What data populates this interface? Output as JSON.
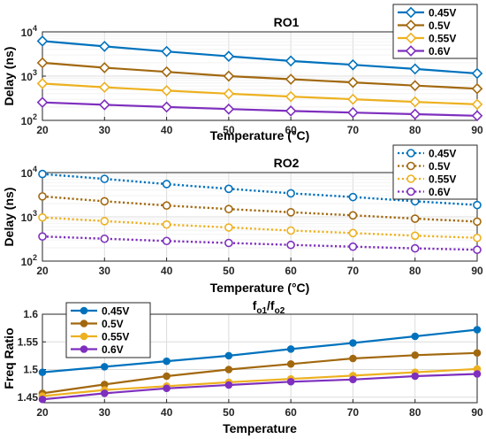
{
  "colors": {
    "s045": "#0072BD",
    "s05": "#A2680F",
    "s055": "#EDB120",
    "s06": "#7E2FBE"
  },
  "chart_data": [
    {
      "id": "ro1",
      "type": "line",
      "title": "RO1",
      "xlabel": "Temperature (°C)",
      "ylabel": "Delay (ns)",
      "yscale": "log",
      "xlim": [
        20,
        90
      ],
      "ylim": [
        100,
        10000
      ],
      "x_ticks": [
        "20",
        "30",
        "40",
        "50",
        "60",
        "70",
        "80",
        "90"
      ],
      "y_ticks": [
        100,
        1000,
        10000
      ],
      "y_tick_base": "10",
      "y_tick_exp": [
        "2",
        "3",
        "4"
      ],
      "grid": true,
      "legend": "top-right",
      "line_style": "solid",
      "marker": "diamond",
      "x": [
        20,
        30,
        40,
        50,
        60,
        70,
        80,
        90
      ],
      "series": [
        {
          "name": "0.45V",
          "color": "#0072BD",
          "values": [
            6200,
            4700,
            3600,
            2800,
            2200,
            1800,
            1450,
            1150
          ]
        },
        {
          "name": "0.5V",
          "color": "#A2680F",
          "values": [
            2000,
            1550,
            1250,
            1000,
            850,
            720,
            610,
            520
          ]
        },
        {
          "name": "0.55V",
          "color": "#EDB120",
          "values": [
            680,
            560,
            470,
            400,
            345,
            300,
            262,
            230
          ]
        },
        {
          "name": "0.6V",
          "color": "#7E2FBE",
          "values": [
            255,
            225,
            200,
            180,
            163,
            150,
            138,
            127
          ]
        }
      ]
    },
    {
      "id": "ro2",
      "type": "line",
      "title": "RO2",
      "xlabel": "Temperature (°C)",
      "ylabel": "Delay (ns)",
      "yscale": "log",
      "xlim": [
        20,
        90
      ],
      "ylim": [
        100,
        10000
      ],
      "x_ticks": [
        "20",
        "30",
        "40",
        "50",
        "60",
        "70",
        "80",
        "90"
      ],
      "y_ticks": [
        100,
        1000,
        10000
      ],
      "y_tick_base": "10",
      "y_tick_exp": [
        "2",
        "3",
        "4"
      ],
      "grid": true,
      "legend": "top-right",
      "line_style": "dotted",
      "marker": "circle",
      "x": [
        20,
        30,
        40,
        50,
        60,
        70,
        80,
        90
      ],
      "series": [
        {
          "name": "0.45V",
          "color": "#0072BD",
          "values": [
            9300,
            7200,
            5500,
            4300,
            3400,
            2800,
            2250,
            1850
          ]
        },
        {
          "name": "0.5V",
          "color": "#A2680F",
          "values": [
            2900,
            2250,
            1800,
            1500,
            1270,
            1080,
            910,
            780
          ]
        },
        {
          "name": "0.55V",
          "color": "#EDB120",
          "values": [
            970,
            800,
            670,
            575,
            490,
            430,
            375,
            335
          ]
        },
        {
          "name": "0.6V",
          "color": "#7E2FBE",
          "values": [
            360,
            320,
            285,
            257,
            232,
            212,
            194,
            180
          ]
        }
      ]
    },
    {
      "id": "ratio",
      "type": "line",
      "title_main": "f",
      "title_sub1": "o1",
      "title_sep": "/f",
      "title_sub2": "o2",
      "xlabel": "Temperature",
      "ylabel": "Freq Ratio",
      "yscale": "linear",
      "xlim": [
        20,
        90
      ],
      "ylim": [
        1.44,
        1.6
      ],
      "x_ticks": [
        "20",
        "30",
        "40",
        "50",
        "60",
        "70",
        "80",
        "90"
      ],
      "y_ticks": [
        "1.45",
        "1.5",
        "1.55",
        "1.6"
      ],
      "grid": true,
      "legend": "top-left",
      "line_style": "solid",
      "marker": "circle-filled",
      "x": [
        20,
        30,
        40,
        50,
        60,
        70,
        80,
        90
      ],
      "series": [
        {
          "name": "0.45V",
          "color": "#0072BD",
          "values": [
            1.495,
            1.505,
            1.515,
            1.525,
            1.537,
            1.548,
            1.56,
            1.572
          ]
        },
        {
          "name": "0.5V",
          "color": "#A2680F",
          "values": [
            1.457,
            1.473,
            1.488,
            1.5,
            1.51,
            1.52,
            1.526,
            1.53
          ]
        },
        {
          "name": "0.55V",
          "color": "#EDB120",
          "values": [
            1.452,
            1.463,
            1.47,
            1.477,
            1.483,
            1.489,
            1.495,
            1.501
          ]
        },
        {
          "name": "0.6V",
          "color": "#7E2FBE",
          "values": [
            1.446,
            1.457,
            1.466,
            1.472,
            1.478,
            1.482,
            1.488,
            1.492
          ]
        }
      ]
    }
  ]
}
